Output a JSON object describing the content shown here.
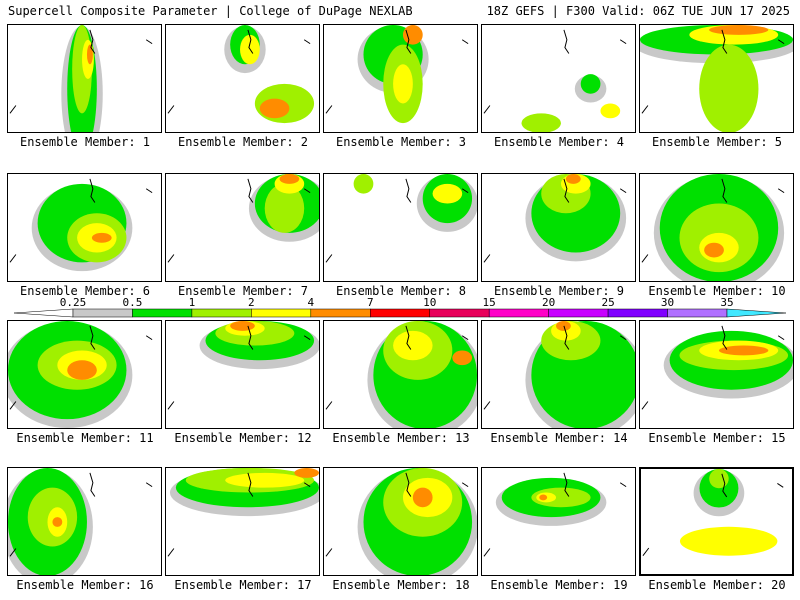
{
  "header": {
    "left": "Supercell Composite Parameter | College of DuPage NEXLAB",
    "right": "18Z GEFS | F300 Valid: 06Z TUE JUN 17 2025"
  },
  "members": [
    {
      "label": "Ensemble Member: 1"
    },
    {
      "label": "Ensemble Member: 2"
    },
    {
      "label": "Ensemble Member: 3"
    },
    {
      "label": "Ensemble Member: 4"
    },
    {
      "label": "Ensemble Member: 5"
    },
    {
      "label": "Ensemble Member: 6"
    },
    {
      "label": "Ensemble Member: 7"
    },
    {
      "label": "Ensemble Member: 8"
    },
    {
      "label": "Ensemble Member: 9"
    },
    {
      "label": "Ensemble Member: 10"
    },
    {
      "label": "Ensemble Member: 11"
    },
    {
      "label": "Ensemble Member: 12"
    },
    {
      "label": "Ensemble Member: 13"
    },
    {
      "label": "Ensemble Member: 14"
    },
    {
      "label": "Ensemble Member: 15"
    },
    {
      "label": "Ensemble Member: 16"
    },
    {
      "label": "Ensemble Member: 17"
    },
    {
      "label": "Ensemble Member: 18"
    },
    {
      "label": "Ensemble Member: 19"
    },
    {
      "label": "Ensemble Member: 20"
    }
  ],
  "colorbar": {
    "levels": [
      "0.25",
      "0.5",
      "1",
      "2",
      "4",
      "7",
      "10",
      "15",
      "20",
      "25",
      "30",
      "35"
    ],
    "colors": [
      "#c8c8c8",
      "#00e000",
      "#a0f000",
      "#ffff00",
      "#ff8c00",
      "#ff0000",
      "#e8005a",
      "#ff00c8",
      "#c800ff",
      "#8000ff",
      "#b070ff",
      "#40e8ff"
    ],
    "low_color": "#ffffff",
    "high_color": "#40e8ff"
  },
  "selected_member": "Ensemble Member: 20"
}
